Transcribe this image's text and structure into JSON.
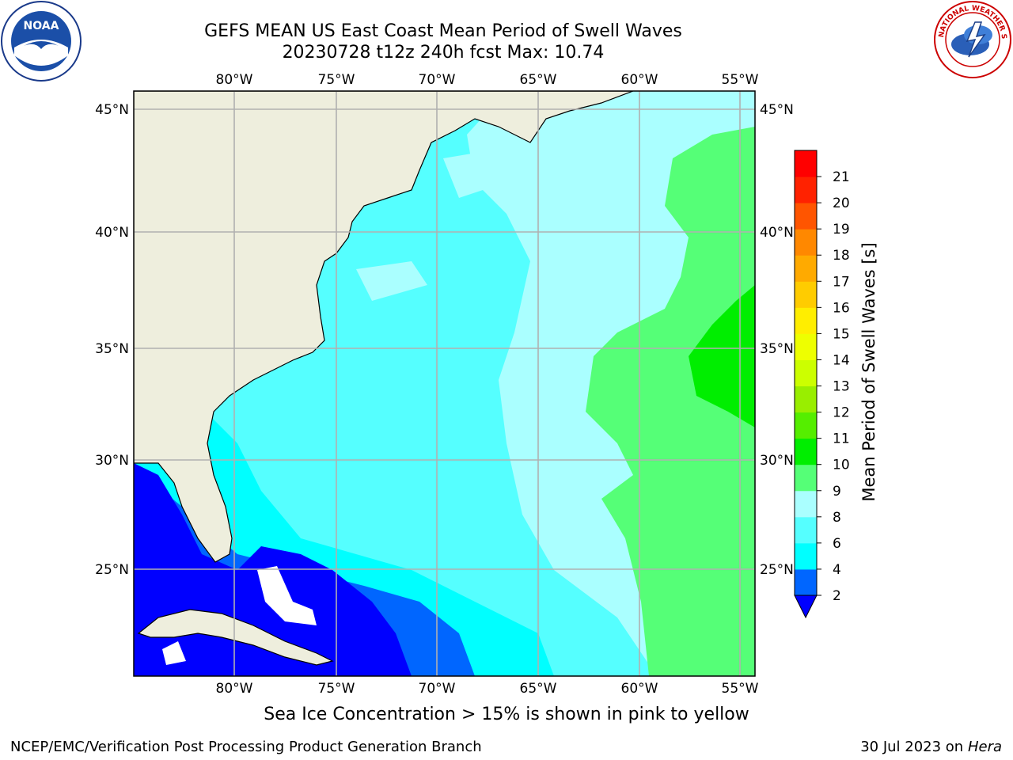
{
  "header": {
    "title_line1": "GEFS MEAN US East Coast Mean Period of Swell Waves",
    "title_line2": "20230728 t12z 240h fcst   Max: 10.74"
  },
  "logos": {
    "left": "noaa-logo",
    "right": "national-weather-service-logo",
    "noaa_text": "NOAA",
    "nws_text": "NATIONAL WEATHER SERVICE"
  },
  "map": {
    "lon_labels": [
      "80°W",
      "75°W",
      "70°W",
      "65°W",
      "60°W",
      "55°W"
    ],
    "lat_labels": [
      "45°N",
      "40°N",
      "35°N",
      "30°N",
      "25°N"
    ],
    "lon_values": [
      -80,
      -75,
      -70,
      -65,
      -60,
      -55
    ],
    "lat_values": [
      45,
      40,
      35,
      30,
      25
    ],
    "extent": {
      "lon": [
        -85,
        -54
      ],
      "lat": [
        20.5,
        46
      ]
    },
    "colors": {
      "land": "#eeeedd",
      "grid": "#b0b0b0",
      "coast": "#000000"
    }
  },
  "colorbar": {
    "label": "Mean Period of Swell Waves [s]",
    "levels": [
      "2",
      "4",
      "6",
      "8",
      "9",
      "10",
      "11",
      "12",
      "13",
      "14",
      "15",
      "16",
      "17",
      "18",
      "19",
      "20",
      "21"
    ],
    "colors": [
      "#0066ff",
      "#00ffff",
      "#55ffff",
      "#aaffff",
      "#55ff77",
      "#00ee00",
      "#55ee00",
      "#99ee00",
      "#ccff00",
      "#eeff00",
      "#ffee00",
      "#ffcc00",
      "#ffaa00",
      "#ff8800",
      "#ff5500",
      "#ff2200",
      "#ff0000"
    ],
    "under_color": "#0000ff"
  },
  "footer": {
    "note": "Sea Ice Concentration > 15% is shown in pink to yellow",
    "credit": "NCEP/EMC/Verification Post Processing Product Generation Branch",
    "date": "30 Jul 2023 on",
    "host": "Hera"
  }
}
